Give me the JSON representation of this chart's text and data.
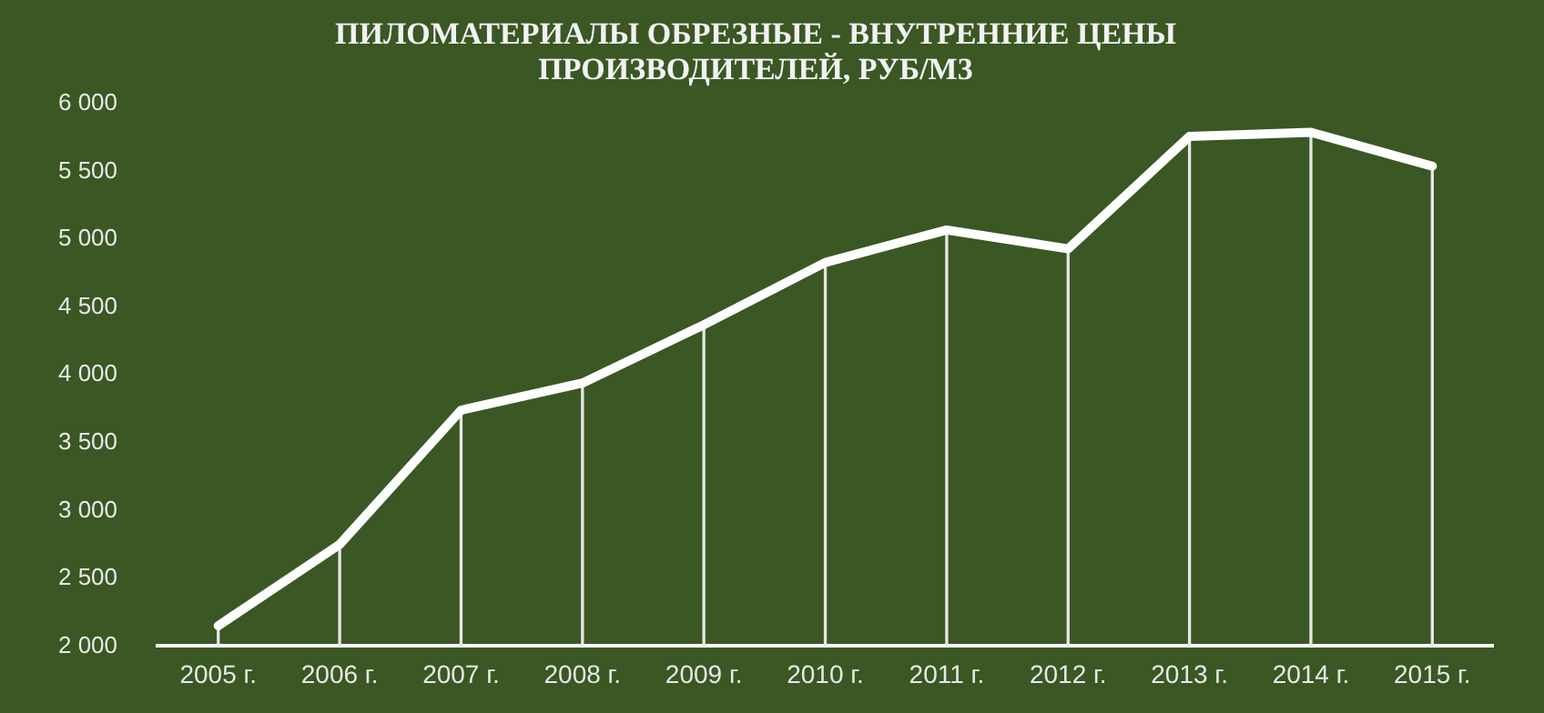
{
  "chart_data": {
    "type": "line",
    "title": "ПИЛОМАТЕРИАЛЫ ОБРЕЗНЫЕ - ВНУТРЕННИЕ ЦЕНЫ ПРОИЗВОДИТЕЛЕЙ, РУБ/М3",
    "categories": [
      "2005 г.",
      "2006 г.",
      "2007 г.",
      "2008 г.",
      "2009 г.",
      "2010 г.",
      "2011 г.",
      "2012 г.",
      "2013 г.",
      "2014 г.",
      "2015 г."
    ],
    "series": [
      {
        "color": "#ffffff",
        "values": [
          2150,
          2750,
          3740,
          3940,
          4370,
          4830,
          5070,
          4930,
          5760,
          5790,
          5540
        ]
      },
      {
        "type": "bar",
        "color": "#e6e6e6",
        "values": [
          2150,
          2750,
          3740,
          3940,
          4370,
          4830,
          5070,
          4930,
          5760,
          5790,
          5540
        ]
      }
    ],
    "ylim": [
      2000,
      6000
    ],
    "yticks": [
      {
        "value": 2000,
        "label": "2 000"
      },
      {
        "value": 2500,
        "label": "2 500"
      },
      {
        "value": 3000,
        "label": "3 000"
      },
      {
        "value": 3500,
        "label": "3 500"
      },
      {
        "value": 4000,
        "label": "4 000"
      },
      {
        "value": 4500,
        "label": "4 500"
      },
      {
        "value": 5000,
        "label": "5 000"
      },
      {
        "value": 5500,
        "label": "5 500"
      },
      {
        "value": 6000,
        "label": "6 000"
      }
    ],
    "grid": false,
    "legend": false,
    "marker": "none",
    "line_style": "solid"
  }
}
